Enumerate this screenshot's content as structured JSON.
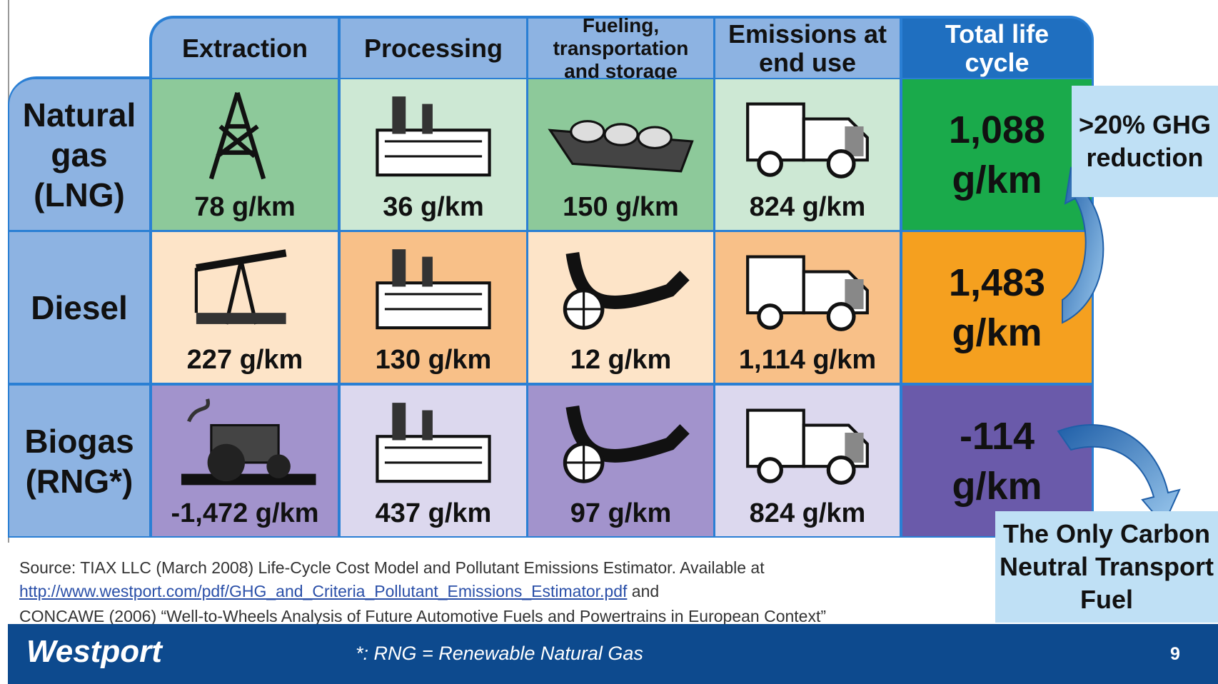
{
  "header": {
    "columns": [
      "Extraction",
      "Processing",
      "Fueling, transportation and storage",
      "Emissions at end use",
      "Total life cycle"
    ]
  },
  "table": {
    "rows": [
      {
        "label": "Natural gas (LNG)",
        "cells": [
          "78 g/km",
          "36 g/km",
          "150 g/km",
          "824 g/km",
          "1,088 g/km"
        ]
      },
      {
        "label": "Diesel",
        "cells": [
          "227 g/km",
          "130 g/km",
          "12 g/km",
          "1,114 g/km",
          "1,483 g/km"
        ]
      },
      {
        "label": "Biogas (RNG*)",
        "cells": [
          "-1,472 g/km",
          "437 g/km",
          "97 g/km",
          "824 g/km",
          "-114 g/km"
        ]
      }
    ]
  },
  "callouts": [
    ">20% GHG reduction",
    "The Only Carbon Neutral Transport Fuel"
  ],
  "source": {
    "intro": "Source: TIAX LLC (March 2008) Life-Cycle Cost Model and Pollutant Emissions Estimator.  Available at",
    "link": "http://www.westport.com/pdf/GHG_and_Criteria_Pollutant_Emissions_Estimator.pdf",
    "joiner": "and",
    "second": "CONCAWE (2006) “Well-to-Wheels Analysis of Future Automotive Fuels and Powertrains in European Context”"
  },
  "footer": {
    "logo": "Westport",
    "note": "*: RNG = Renewable Natural Gas",
    "page": "9"
  }
}
